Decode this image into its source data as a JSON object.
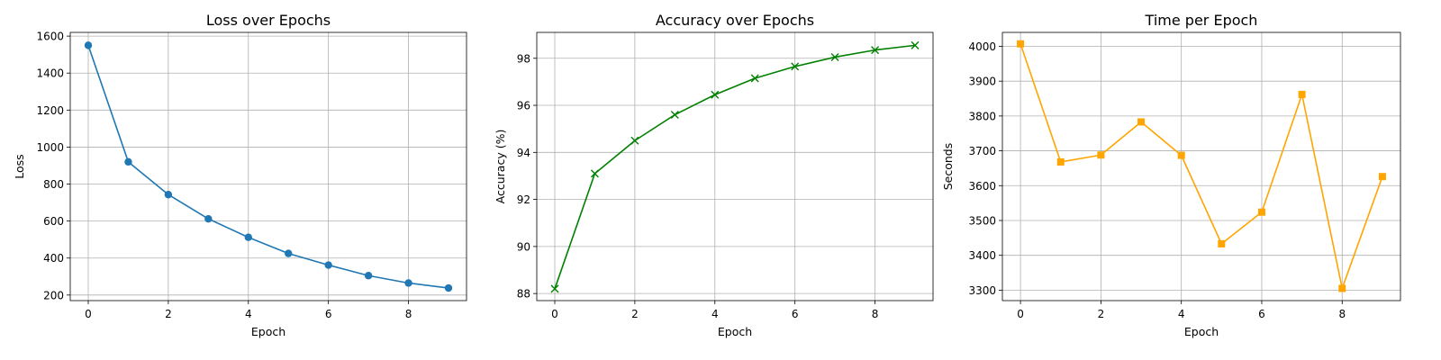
{
  "chart_data": [
    {
      "type": "line",
      "title": "Loss over Epochs",
      "xlabel": "Epoch",
      "ylabel": "Loss",
      "x": [
        0,
        1,
        2,
        3,
        4,
        5,
        6,
        7,
        8,
        9
      ],
      "series": [
        {
          "values": [
            1550,
            920,
            743,
            612,
            512,
            425,
            362,
            305,
            265,
            238
          ]
        }
      ],
      "xlim": [
        -0.45,
        9.45
      ],
      "ylim": [
        170,
        1620
      ],
      "xticks": [
        0,
        2,
        4,
        6,
        8
      ],
      "yticks": [
        200,
        400,
        600,
        800,
        1000,
        1200,
        1400,
        1600
      ],
      "grid": true,
      "color": "#1f77b4",
      "marker": "circle"
    },
    {
      "type": "line",
      "title": "Accuracy over Epochs",
      "xlabel": "Epoch",
      "ylabel": "Accuracy (%)",
      "x": [
        0,
        1,
        2,
        3,
        4,
        5,
        6,
        7,
        8,
        9
      ],
      "series": [
        {
          "values": [
            88.2,
            93.1,
            94.5,
            95.6,
            96.45,
            97.15,
            97.65,
            98.05,
            98.35,
            98.55
          ]
        }
      ],
      "xlim": [
        -0.45,
        9.45
      ],
      "ylim": [
        87.7,
        99.1
      ],
      "xticks": [
        0,
        2,
        4,
        6,
        8
      ],
      "yticks": [
        88,
        90,
        92,
        94,
        96,
        98
      ],
      "grid": true,
      "color": "#008000",
      "marker": "x"
    },
    {
      "type": "line",
      "title": "Time per Epoch",
      "xlabel": "Epoch",
      "ylabel": "Seconds",
      "x": [
        0,
        1,
        2,
        3,
        4,
        5,
        6,
        7,
        8,
        9
      ],
      "series": [
        {
          "values": [
            4007,
            3668,
            3688,
            3783,
            3687,
            3433,
            3524,
            3862,
            3305,
            3626
          ]
        }
      ],
      "xlim": [
        -0.45,
        9.45
      ],
      "ylim": [
        3270,
        4040
      ],
      "xticks": [
        0,
        2,
        4,
        6,
        8
      ],
      "yticks": [
        3300,
        3400,
        3500,
        3600,
        3700,
        3800,
        3900,
        4000
      ],
      "grid": true,
      "color": "#ffa500",
      "marker": "square"
    }
  ]
}
